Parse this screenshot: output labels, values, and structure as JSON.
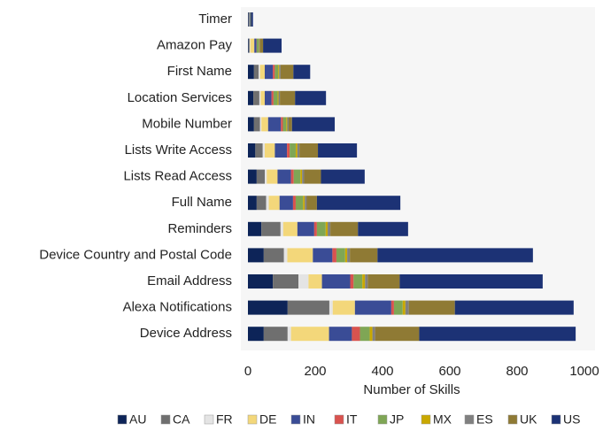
{
  "chart_data": {
    "type": "stacked_bar_horizontal",
    "x_label": "Number of Skills",
    "categories": [
      "Timer",
      "Amazon Pay",
      "First Name",
      "Location Services",
      "Mobile Number",
      "Lists Write Access",
      "Lists Read Access",
      "Full Name",
      "Reminders",
      "Device Country and Postal Code",
      "Email Address",
      "Alexa Notifications",
      "Device Address"
    ],
    "series": [
      {
        "name": "AU",
        "color": "#0d2458",
        "values": [
          2,
          2,
          18,
          16,
          18,
          22,
          26,
          26,
          40,
          47,
          74,
          118,
          47
        ]
      },
      {
        "name": "CA",
        "color": "#6f6f6f",
        "values": [
          1,
          3,
          14,
          18,
          18,
          22,
          24,
          28,
          57,
          60,
          76,
          124,
          71
        ]
      },
      {
        "name": "FR",
        "color": "#e4e4e4",
        "values": [
          0,
          2,
          4,
          4,
          4,
          6,
          6,
          8,
          8,
          10,
          30,
          10,
          10
        ]
      },
      {
        "name": "DE",
        "color": "#f3d77a",
        "values": [
          1,
          12,
          14,
          12,
          20,
          30,
          32,
          32,
          42,
          76,
          40,
          66,
          113
        ]
      },
      {
        "name": "IN",
        "color": "#3a4c96",
        "values": [
          3,
          6,
          24,
          20,
          38,
          36,
          40,
          40,
          50,
          58,
          84,
          108,
          68
        ]
      },
      {
        "name": "IT",
        "color": "#d9534f",
        "values": [
          0,
          1,
          6,
          6,
          6,
          8,
          8,
          8,
          8,
          12,
          10,
          8,
          24
        ]
      },
      {
        "name": "JP",
        "color": "#7fa655",
        "values": [
          1,
          6,
          10,
          12,
          10,
          18,
          20,
          22,
          26,
          26,
          26,
          26,
          29
        ]
      },
      {
        "name": "MX",
        "color": "#c9a800",
        "values": [
          0,
          1,
          3,
          3,
          3,
          5,
          5,
          5,
          6,
          6,
          8,
          8,
          8
        ]
      },
      {
        "name": "ES",
        "color": "#808080",
        "values": [
          0,
          2,
          4,
          4,
          4,
          6,
          6,
          6,
          8,
          8,
          8,
          10,
          8
        ]
      },
      {
        "name": "UK",
        "color": "#8f7a34",
        "values": [
          1,
          10,
          38,
          45,
          10,
          55,
          50,
          30,
          82,
          82,
          95,
          137,
          131
        ]
      },
      {
        "name": "US",
        "color": "#1c3275",
        "values": [
          6,
          55,
          50,
          92,
          127,
          116,
          130,
          248,
          149,
          462,
          425,
          353,
          465
        ]
      }
    ],
    "xlim": [
      0,
      1000
    ],
    "xticks": [
      0,
      200,
      400,
      600,
      800,
      1000
    ]
  }
}
